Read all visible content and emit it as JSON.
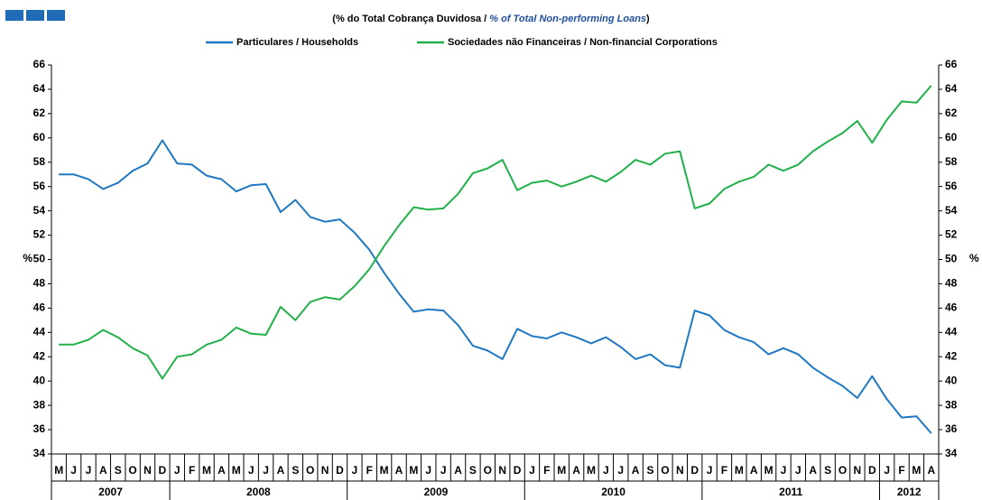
{
  "chart_data": {
    "type": "line",
    "subtitle_parts": [
      "(% do Total Cobrança Duvidosa  / ",
      "% of Total Non-performing Loans",
      ")"
    ],
    "y_label": "%",
    "y2_label": "%",
    "groups": [
      {
        "label": "2007",
        "categories": [
          "M",
          "J",
          "J",
          "A",
          "S",
          "O",
          "N",
          "D"
        ]
      },
      {
        "label": "2008",
        "categories": [
          "J",
          "F",
          "M",
          "A",
          "M",
          "J",
          "J",
          "A",
          "S",
          "O",
          "N",
          "D"
        ]
      },
      {
        "label": "2009",
        "categories": [
          "J",
          "F",
          "M",
          "A",
          "M",
          "J",
          "J",
          "A",
          "S",
          "O",
          "N",
          "D"
        ]
      },
      {
        "label": "2010",
        "categories": [
          "J",
          "F",
          "M",
          "A",
          "M",
          "J",
          "J",
          "A",
          "S",
          "O",
          "N",
          "D"
        ]
      },
      {
        "label": "2011",
        "categories": [
          "J",
          "F",
          "M",
          "A",
          "M",
          "J",
          "J",
          "A",
          "S",
          "O",
          "N",
          "D"
        ]
      },
      {
        "label": "2012",
        "categories": [
          "J",
          "F",
          "M",
          "A"
        ]
      }
    ],
    "series": [
      {
        "name": "Particulares / Households",
        "color": "#1f78c1",
        "values": [
          57.0,
          57.0,
          56.6,
          55.8,
          56.3,
          57.3,
          57.9,
          59.8,
          57.9,
          57.8,
          56.9,
          56.6,
          55.6,
          56.1,
          56.2,
          53.9,
          54.9,
          53.5,
          53.1,
          53.3,
          52.2,
          50.8,
          48.9,
          47.2,
          45.7,
          45.9,
          45.8,
          44.6,
          42.9,
          42.5,
          41.8,
          44.3,
          43.7,
          43.5,
          44.0,
          43.6,
          43.1,
          43.6,
          42.8,
          41.8,
          42.2,
          41.3,
          41.1,
          45.8,
          45.4,
          44.2,
          43.6,
          43.2,
          42.2,
          42.7,
          42.2,
          41.1,
          40.3,
          39.6,
          38.6,
          40.4,
          38.5,
          37.0,
          37.1,
          35.7
        ]
      },
      {
        "name": "Sociedades não Financeiras / Non-financial Corporations",
        "color": "#22b04b",
        "values": [
          43.0,
          43.0,
          43.4,
          44.2,
          43.6,
          42.7,
          42.1,
          40.2,
          42.0,
          42.2,
          43.0,
          43.4,
          44.4,
          43.9,
          43.8,
          46.1,
          45.0,
          46.5,
          46.9,
          46.7,
          47.8,
          49.2,
          51.1,
          52.8,
          54.3,
          54.1,
          54.2,
          55.4,
          57.1,
          57.5,
          58.2,
          55.7,
          56.3,
          56.5,
          56.0,
          56.4,
          56.9,
          56.4,
          57.2,
          58.2,
          57.8,
          58.7,
          58.9,
          54.2,
          54.6,
          55.8,
          56.4,
          56.8,
          57.8,
          57.3,
          57.8,
          58.9,
          59.7,
          60.4,
          61.4,
          59.6,
          61.5,
          63.0,
          62.9,
          64.3
        ]
      }
    ],
    "ylim": [
      34,
      66
    ],
    "yticks": [
      34,
      36,
      38,
      40,
      42,
      44,
      46,
      48,
      50,
      52,
      54,
      56,
      58,
      60,
      62,
      64,
      66
    ],
    "y2lim": [
      34,
      66
    ],
    "y2ticks": [
      34,
      36,
      38,
      40,
      42,
      44,
      46,
      48,
      50,
      52,
      54,
      56,
      58,
      60,
      62,
      64,
      66
    ]
  }
}
